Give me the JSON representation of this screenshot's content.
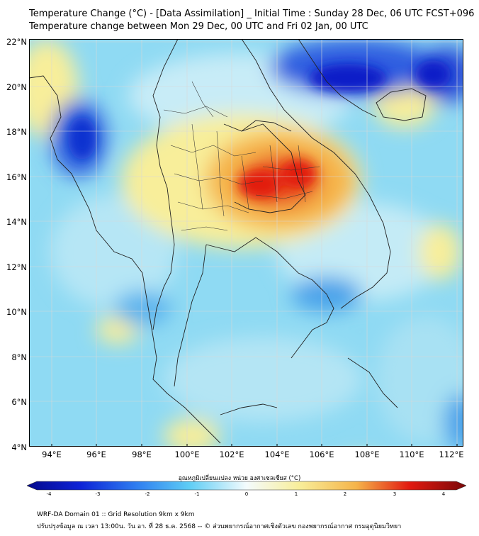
{
  "header": {
    "title_line1": "Temperature Change (°C) - [Data Assimilation] _ Initial Time : Sunday 28 Dec, 06 UTC FCST+096",
    "title_line2": "Temperature change between Mon 29 Dec, 00 UTC and Fri 02 Jan, 00 UTC"
  },
  "map": {
    "lat_labels": [
      "22°N",
      "20°N",
      "18°N",
      "16°N",
      "14°N",
      "12°N",
      "10°N",
      "8°N",
      "6°N",
      "4°N"
    ],
    "lon_labels": [
      "94°E",
      "96°E",
      "98°E",
      "100°E",
      "102°E",
      "104°E",
      "106°E",
      "108°E",
      "110°E",
      "112°E"
    ],
    "grid": true,
    "colors": {
      "base": "#8fdaf3",
      "warm_center": "#e21a10",
      "cold_center": "#0a1fc8"
    }
  },
  "colorbar": {
    "title": "อุณหภูมิเปลี่ยนแปลง หน่วย องศาเซลเซียส (°C)",
    "ticks": [
      "-4",
      "-3",
      "-2",
      "-1",
      "0",
      "1",
      "2",
      "3",
      "4"
    ],
    "range": [
      -4,
      4
    ]
  },
  "footer": {
    "line1": "WRF-DA Domain 01 :: Grid Resolution 9km x 9km",
    "line2": "ปรับปรุงข้อมูล ณ เวลา 13:00น. วัน อา. ที่ 28 ธ.ค. 2568 -- © ส่วนพยากรณ์อากาศเชิงตัวเลข กองพยากรณ์อากาศ กรมอุตุนิยมวิทยา"
  }
}
